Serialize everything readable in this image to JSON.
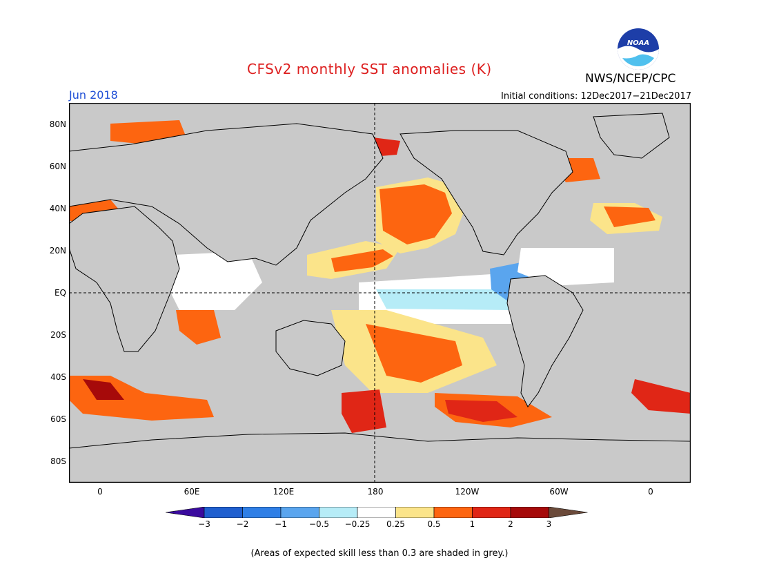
{
  "title": "CFSv2 monthly SST anomalies (K)",
  "target_month": "Jun 2018",
  "initial_conditions": "Initial conditions: 12Dec2017−21Dec2017",
  "agency": "NWS/NCEP/CPC",
  "logo_text": "NOAA",
  "note": "(Areas of expected skill less than 0.3 are shaded in grey.)",
  "lat_labels": [
    "80N",
    "60N",
    "40N",
    "20N",
    "EQ",
    "20S",
    "40S",
    "60S",
    "80S"
  ],
  "lon_labels": [
    "0",
    "60E",
    "120E",
    "180",
    "120W",
    "60W",
    "0"
  ],
  "colorbar": {
    "labels": [
      "−3",
      "−2",
      "−1",
      "−0.5",
      "−0.25",
      "0.25",
      "0.5",
      "1",
      "2",
      "3"
    ],
    "colors": [
      "#3a0a9e",
      "#1f5fcf",
      "#2f7fe6",
      "#5aa5ee",
      "#b6ecf7",
      "#ffffff",
      "#fbe48a",
      "#fd6510",
      "#e02616",
      "#a60a0a",
      "#6b4a3a"
    ]
  },
  "colors": {
    "skill_mask_grey": "#c9c9c9",
    "coastline": "#000000"
  },
  "map_axes": {
    "lon_range": [
      "20W",
      "20E"
    ],
    "lat_range": [
      "90S",
      "90N"
    ],
    "dashed_lines": [
      "EQ",
      "180"
    ]
  }
}
